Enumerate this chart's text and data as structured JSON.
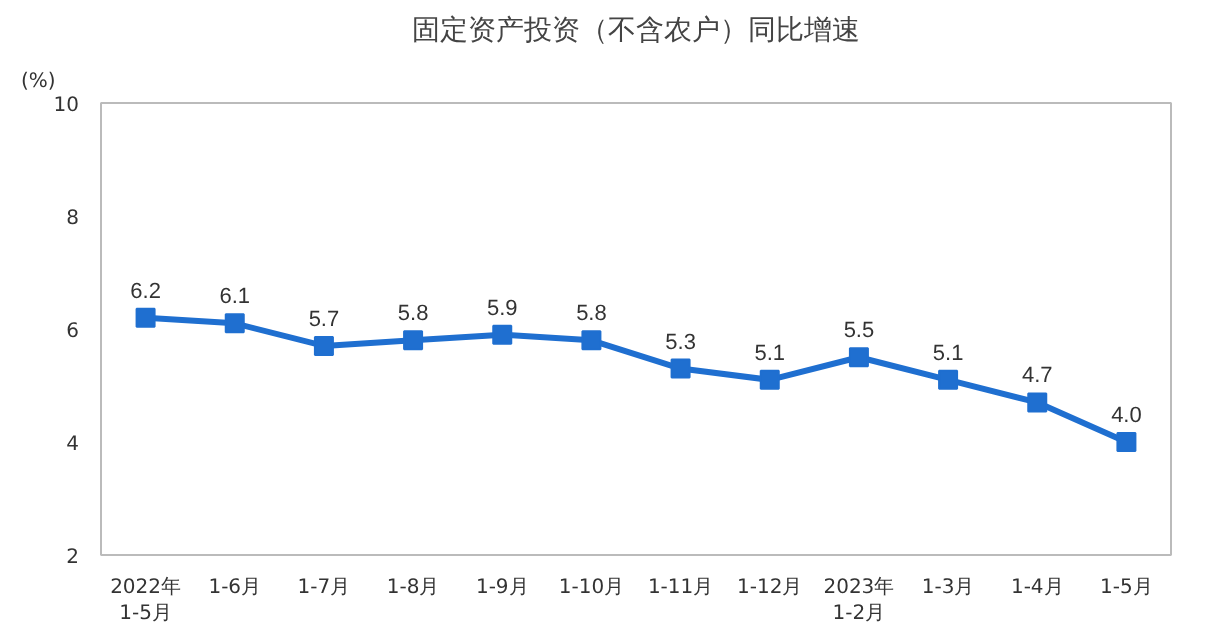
{
  "chart_data": {
    "type": "line",
    "title": "固定资产投资（不含农户）同比增速",
    "ylabel": "(%)",
    "categories": [
      "2022年\n1-5月",
      "1-6月",
      "1-7月",
      "1-8月",
      "1-9月",
      "1-10月",
      "1-11月",
      "1-12月",
      "2023年\n1-2月",
      "1-3月",
      "1-4月",
      "1-5月"
    ],
    "series": [
      {
        "color": "#1f6fd0",
        "values": [
          6.2,
          6.1,
          5.7,
          5.8,
          5.9,
          5.8,
          5.3,
          5.1,
          5.5,
          5.1,
          4.7,
          4.0
        ]
      }
    ],
    "ylim": [
      2,
      10
    ],
    "yticks": [
      2,
      4,
      6,
      8,
      10
    ],
    "grid": false,
    "marker": "square",
    "line_style": "solid",
    "value_labels": [
      "6.2",
      "6.1",
      "5.7",
      "5.8",
      "5.9",
      "5.8",
      "5.3",
      "5.1",
      "5.5",
      "5.1",
      "4.7",
      "4.0"
    ]
  }
}
